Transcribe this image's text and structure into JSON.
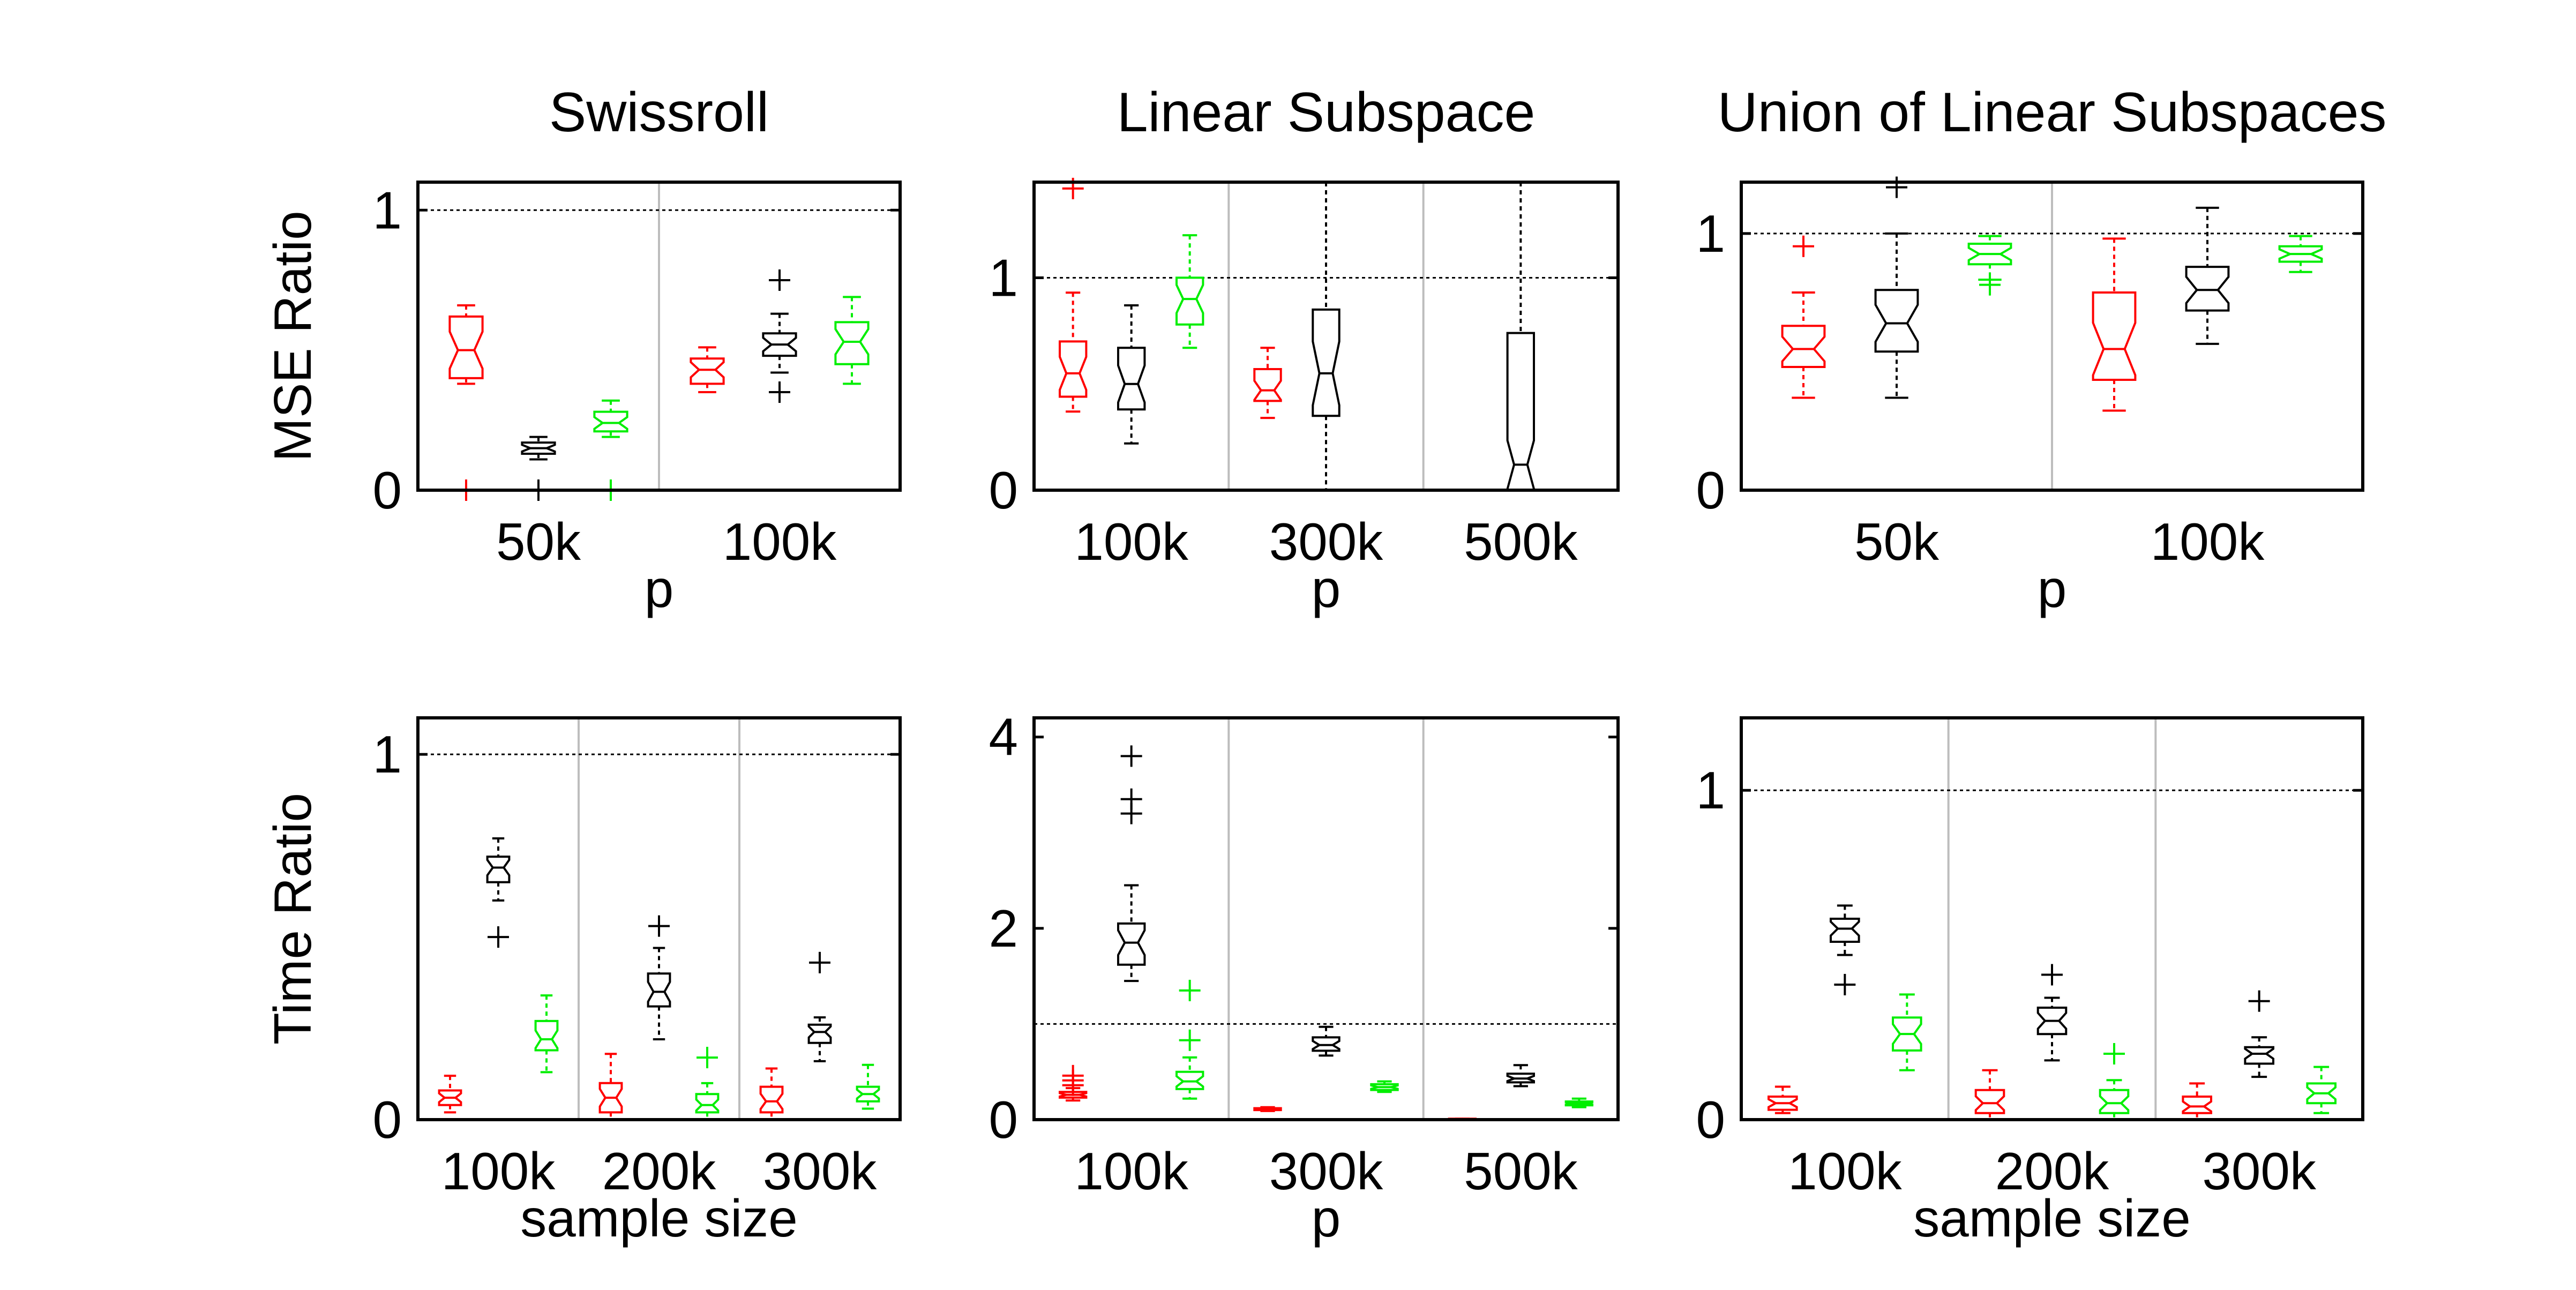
{
  "figure": {
    "colors": {
      "red": "#ff0000",
      "black": "#000000",
      "green": "#00ee00"
    }
  },
  "chart_data": [
    {
      "type": "box",
      "title": "Swissroll",
      "xlabel": "p",
      "ylabel": "MSE Ratio",
      "ylim": [
        0,
        1.1
      ],
      "yticks": [
        "0",
        "1"
      ],
      "reference_line": 1,
      "categories": [
        "50k",
        "100k"
      ],
      "series": [
        {
          "color": "red",
          "boxes": [
            {
              "category": "50k",
              "min": 0.38,
              "q1": 0.4,
              "median": 0.5,
              "q3": 0.62,
              "max": 0.66,
              "outliers": [
                0
              ]
            },
            {
              "category": "100k",
              "min": 0.35,
              "q1": 0.38,
              "median": 0.43,
              "q3": 0.47,
              "max": 0.51,
              "outliers": []
            }
          ]
        },
        {
          "color": "black",
          "boxes": [
            {
              "category": "50k",
              "min": 0.11,
              "q1": 0.13,
              "median": 0.15,
              "q3": 0.17,
              "max": 0.19,
              "outliers": [
                0
              ]
            },
            {
              "category": "100k",
              "min": 0.42,
              "q1": 0.48,
              "median": 0.52,
              "q3": 0.56,
              "max": 0.63,
              "outliers": [
                0.35,
                0.75
              ]
            }
          ]
        },
        {
          "color": "green",
          "boxes": [
            {
              "category": "50k",
              "min": 0.19,
              "q1": 0.21,
              "median": 0.24,
              "q3": 0.28,
              "max": 0.32,
              "outliers": [
                0
              ]
            },
            {
              "category": "100k",
              "min": 0.38,
              "q1": 0.45,
              "median": 0.53,
              "q3": 0.6,
              "max": 0.69,
              "outliers": []
            }
          ]
        }
      ]
    },
    {
      "type": "box",
      "title": "Linear Subspace",
      "xlabel": "p",
      "ylabel": "",
      "ylim": [
        0,
        1.45
      ],
      "yticks": [
        "0",
        "1"
      ],
      "reference_line": 1,
      "categories": [
        "100k",
        "300k",
        "500k"
      ],
      "series": [
        {
          "color": "red",
          "boxes": [
            {
              "category": "100k",
              "min": 0.37,
              "q1": 0.44,
              "median": 0.55,
              "q3": 0.7,
              "max": 0.93,
              "outliers": [
                1.42
              ]
            },
            {
              "category": "300k",
              "min": 0.34,
              "q1": 0.42,
              "median": 0.47,
              "q3": 0.57,
              "max": 0.67,
              "outliers": []
            },
            {
              "category": "500k",
              "min": 0,
              "q1": 0,
              "median": 0,
              "q3": 0,
              "max": 0,
              "outliers": []
            }
          ]
        },
        {
          "color": "black",
          "boxes": [
            {
              "category": "100k",
              "min": 0.22,
              "q1": 0.38,
              "median": 0.5,
              "q3": 0.67,
              "max": 0.87,
              "outliers": []
            },
            {
              "category": "300k",
              "min": 0,
              "q1": 0.35,
              "median": 0.55,
              "q3": 0.85,
              "max": 1.45,
              "outliers": []
            },
            {
              "category": "500k",
              "min": 0,
              "q1": 0,
              "median": 0.12,
              "q3": 0.74,
              "max": 1.45,
              "outliers": []
            }
          ]
        },
        {
          "color": "green",
          "boxes": [
            {
              "category": "100k",
              "min": 0.67,
              "q1": 0.78,
              "median": 0.9,
              "q3": 1.0,
              "max": 1.2,
              "outliers": []
            },
            {
              "category": "300k",
              "min": 0,
              "q1": 0,
              "median": 0,
              "q3": 0,
              "max": 0,
              "outliers": []
            },
            {
              "category": "500k",
              "min": 0,
              "q1": 0,
              "median": 0,
              "q3": 0,
              "max": 0,
              "outliers": []
            }
          ]
        }
      ]
    },
    {
      "type": "box",
      "title": "Union of Linear Subspaces",
      "xlabel": "p",
      "ylabel": "",
      "ylim": [
        0,
        1.2
      ],
      "yticks": [
        "0",
        "1"
      ],
      "reference_line": 1,
      "categories": [
        "50k",
        "100k"
      ],
      "series": [
        {
          "color": "red",
          "boxes": [
            {
              "category": "50k",
              "min": 0.36,
              "q1": 0.48,
              "median": 0.55,
              "q3": 0.64,
              "max": 0.77,
              "outliers": [
                0.95
              ]
            },
            {
              "category": "100k",
              "min": 0.31,
              "q1": 0.43,
              "median": 0.55,
              "q3": 0.77,
              "max": 0.98,
              "outliers": []
            }
          ]
        },
        {
          "color": "black",
          "boxes": [
            {
              "category": "50k",
              "min": 0.36,
              "q1": 0.54,
              "median": 0.65,
              "q3": 0.78,
              "max": 1.0,
              "outliers": [
                1.18
              ]
            },
            {
              "category": "100k",
              "min": 0.57,
              "q1": 0.7,
              "median": 0.78,
              "q3": 0.87,
              "max": 1.1,
              "outliers": []
            }
          ]
        },
        {
          "color": "green",
          "boxes": [
            {
              "category": "50k",
              "min": 0.82,
              "q1": 0.88,
              "median": 0.92,
              "q3": 0.96,
              "max": 0.99,
              "outliers": [
                0.8
              ]
            },
            {
              "category": "100k",
              "min": 0.85,
              "q1": 0.89,
              "median": 0.92,
              "q3": 0.95,
              "max": 0.99,
              "outliers": []
            }
          ]
        }
      ]
    },
    {
      "type": "box",
      "title": "",
      "xlabel": "sample size",
      "ylabel": "Time Ratio",
      "ylim": [
        0,
        1.1
      ],
      "yticks": [
        "0",
        "1"
      ],
      "reference_line": 1,
      "categories": [
        "100k",
        "200k",
        "300k"
      ],
      "series": [
        {
          "color": "red",
          "boxes": [
            {
              "category": "100k",
              "min": 0.02,
              "q1": 0.04,
              "median": 0.06,
              "q3": 0.08,
              "max": 0.12,
              "outliers": []
            },
            {
              "category": "200k",
              "min": 0.0,
              "q1": 0.02,
              "median": 0.06,
              "q3": 0.1,
              "max": 0.18,
              "outliers": []
            },
            {
              "category": "300k",
              "min": 0.0,
              "q1": 0.02,
              "median": 0.05,
              "q3": 0.09,
              "max": 0.14,
              "outliers": []
            }
          ]
        },
        {
          "color": "black",
          "boxes": [
            {
              "category": "100k",
              "min": 0.6,
              "q1": 0.65,
              "median": 0.69,
              "q3": 0.72,
              "max": 0.77,
              "outliers": [
                0.5
              ]
            },
            {
              "category": "200k",
              "min": 0.22,
              "q1": 0.31,
              "median": 0.35,
              "q3": 0.4,
              "max": 0.47,
              "outliers": [
                0.53
              ]
            },
            {
              "category": "300k",
              "min": 0.16,
              "q1": 0.21,
              "median": 0.24,
              "q3": 0.26,
              "max": 0.28,
              "outliers": [
                0.43
              ]
            }
          ]
        },
        {
          "color": "green",
          "boxes": [
            {
              "category": "100k",
              "min": 0.13,
              "q1": 0.19,
              "median": 0.22,
              "q3": 0.27,
              "max": 0.34,
              "outliers": []
            },
            {
              "category": "200k",
              "min": 0.0,
              "q1": 0.02,
              "median": 0.04,
              "q3": 0.07,
              "max": 0.1,
              "outliers": [
                0.17
              ]
            },
            {
              "category": "300k",
              "min": 0.03,
              "q1": 0.05,
              "median": 0.07,
              "q3": 0.09,
              "max": 0.15,
              "outliers": []
            }
          ]
        }
      ]
    },
    {
      "type": "box",
      "title": "",
      "xlabel": "p",
      "ylabel": "",
      "ylim": [
        0,
        4.2
      ],
      "yticks": [
        "0",
        "2",
        "4"
      ],
      "reference_line": 1,
      "categories": [
        "100k",
        "300k",
        "500k"
      ],
      "series": [
        {
          "color": "red",
          "boxes": [
            {
              "category": "100k",
              "min": 0.2,
              "q1": 0.23,
              "median": 0.26,
              "q3": 0.29,
              "max": 0.33,
              "outliers": [
                0.36,
                0.41,
                0.46
              ]
            },
            {
              "category": "300k",
              "min": 0.09,
              "q1": 0.1,
              "median": 0.11,
              "q3": 0.12,
              "max": 0.13,
              "outliers": []
            },
            {
              "category": "500k",
              "min": 0.0,
              "q1": 0.0,
              "median": 0.0,
              "q3": 0.01,
              "max": 0.01,
              "outliers": []
            }
          ]
        },
        {
          "color": "black",
          "boxes": [
            {
              "category": "100k",
              "min": 1.45,
              "q1": 1.62,
              "median": 1.85,
              "q3": 2.05,
              "max": 2.45,
              "outliers": [
                3.2,
                3.35,
                3.8
              ]
            },
            {
              "category": "300k",
              "min": 0.67,
              "q1": 0.72,
              "median": 0.78,
              "q3": 0.86,
              "max": 0.97,
              "outliers": []
            },
            {
              "category": "500k",
              "min": 0.35,
              "q1": 0.39,
              "median": 0.43,
              "q3": 0.48,
              "max": 0.57,
              "outliers": []
            }
          ]
        },
        {
          "color": "green",
          "boxes": [
            {
              "category": "100k",
              "min": 0.22,
              "q1": 0.32,
              "median": 0.4,
              "q3": 0.5,
              "max": 0.65,
              "outliers": [
                0.83,
                1.35
              ]
            },
            {
              "category": "300k",
              "min": 0.29,
              "q1": 0.31,
              "median": 0.34,
              "q3": 0.37,
              "max": 0.4,
              "outliers": []
            },
            {
              "category": "500k",
              "min": 0.13,
              "q1": 0.15,
              "median": 0.17,
              "q3": 0.19,
              "max": 0.22,
              "outliers": []
            }
          ]
        }
      ]
    },
    {
      "type": "box",
      "title": "",
      "xlabel": "sample size",
      "ylabel": "",
      "ylim": [
        0,
        1.22
      ],
      "yticks": [
        "0",
        "1"
      ],
      "reference_line": 1,
      "categories": [
        "100k",
        "200k",
        "300k"
      ],
      "series": [
        {
          "color": "red",
          "boxes": [
            {
              "category": "100k",
              "min": 0.02,
              "q1": 0.03,
              "median": 0.05,
              "q3": 0.07,
              "max": 0.1,
              "outliers": []
            },
            {
              "category": "200k",
              "min": 0.0,
              "q1": 0.02,
              "median": 0.05,
              "q3": 0.09,
              "max": 0.15,
              "outliers": []
            },
            {
              "category": "300k",
              "min": 0.0,
              "q1": 0.02,
              "median": 0.04,
              "q3": 0.07,
              "max": 0.11,
              "outliers": []
            }
          ]
        },
        {
          "color": "black",
          "boxes": [
            {
              "category": "100k",
              "min": 0.5,
              "q1": 0.54,
              "median": 0.58,
              "q3": 0.61,
              "max": 0.65,
              "outliers": [
                0.41
              ]
            },
            {
              "category": "200k",
              "min": 0.18,
              "q1": 0.26,
              "median": 0.3,
              "q3": 0.34,
              "max": 0.37,
              "outliers": [
                0.44
              ]
            },
            {
              "category": "300k",
              "min": 0.13,
              "q1": 0.17,
              "median": 0.2,
              "q3": 0.22,
              "max": 0.25,
              "outliers": [
                0.36
              ]
            }
          ]
        },
        {
          "color": "green",
          "boxes": [
            {
              "category": "100k",
              "min": 0.15,
              "q1": 0.21,
              "median": 0.26,
              "q3": 0.31,
              "max": 0.38,
              "outliers": []
            },
            {
              "category": "200k",
              "min": 0.0,
              "q1": 0.02,
              "median": 0.05,
              "q3": 0.09,
              "max": 0.12,
              "outliers": [
                0.2
              ]
            },
            {
              "category": "300k",
              "min": 0.02,
              "q1": 0.05,
              "median": 0.08,
              "q3": 0.11,
              "max": 0.16,
              "outliers": []
            }
          ]
        }
      ]
    }
  ]
}
